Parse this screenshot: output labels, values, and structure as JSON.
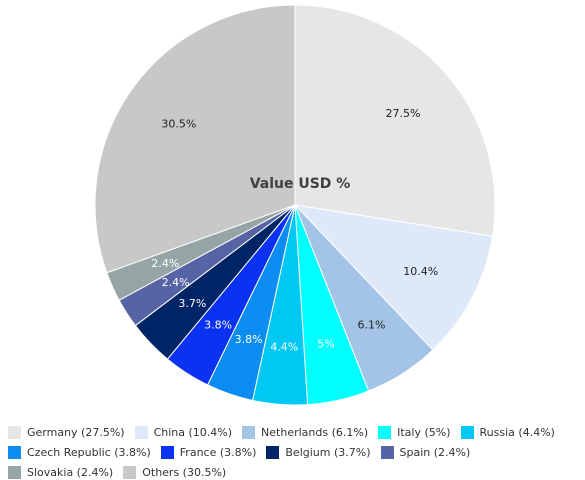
{
  "chart_data": {
    "type": "pie",
    "title": "Value USD %",
    "legend_position": "bottom",
    "slices": [
      {
        "name": "Germany (27.5%)",
        "label": "27.5%",
        "value": 27.5,
        "color": "#e6e6e6",
        "text_color": "#222222"
      },
      {
        "name": "China (10.4%)",
        "label": "10.4%",
        "value": 10.4,
        "color": "#dde9f8",
        "text_color": "#222222"
      },
      {
        "name": "Netherlands (6.1%)",
        "label": "6.1%",
        "value": 6.1,
        "color": "#a3c4e6",
        "text_color": "#222222"
      },
      {
        "name": "Italy (5%)",
        "label": "5%",
        "value": 5.0,
        "color": "#00ffff",
        "text_color": "#ffffff"
      },
      {
        "name": "Russia (4.4%)",
        "label": "4.4%",
        "value": 4.4,
        "color": "#00c8f4",
        "text_color": "#ffffff"
      },
      {
        "name": "Czech Republic (3.8%)",
        "label": "3.8%",
        "value": 3.8,
        "color": "#0a8cf0",
        "text_color": "#ffffff"
      },
      {
        "name": "France (3.8%)",
        "label": "3.8%",
        "value": 3.8,
        "color": "#0a32f0",
        "text_color": "#ffffff"
      },
      {
        "name": "Belgium (3.7%)",
        "label": "3.7%",
        "value": 3.7,
        "color": "#002566",
        "text_color": "#ffffff"
      },
      {
        "name": "Spain (2.4%)",
        "label": "2.4%",
        "value": 2.4,
        "color": "#5664a6",
        "text_color": "#ffffff"
      },
      {
        "name": "Slovakia (2.4%)",
        "label": "2.4%",
        "value": 2.4,
        "color": "#95a5a6",
        "text_color": "#ffffff"
      },
      {
        "name": "Others (30.5%)",
        "label": "30.5%",
        "value": 30.5,
        "color": "#c8c8c8",
        "text_color": "#222222"
      }
    ]
  }
}
